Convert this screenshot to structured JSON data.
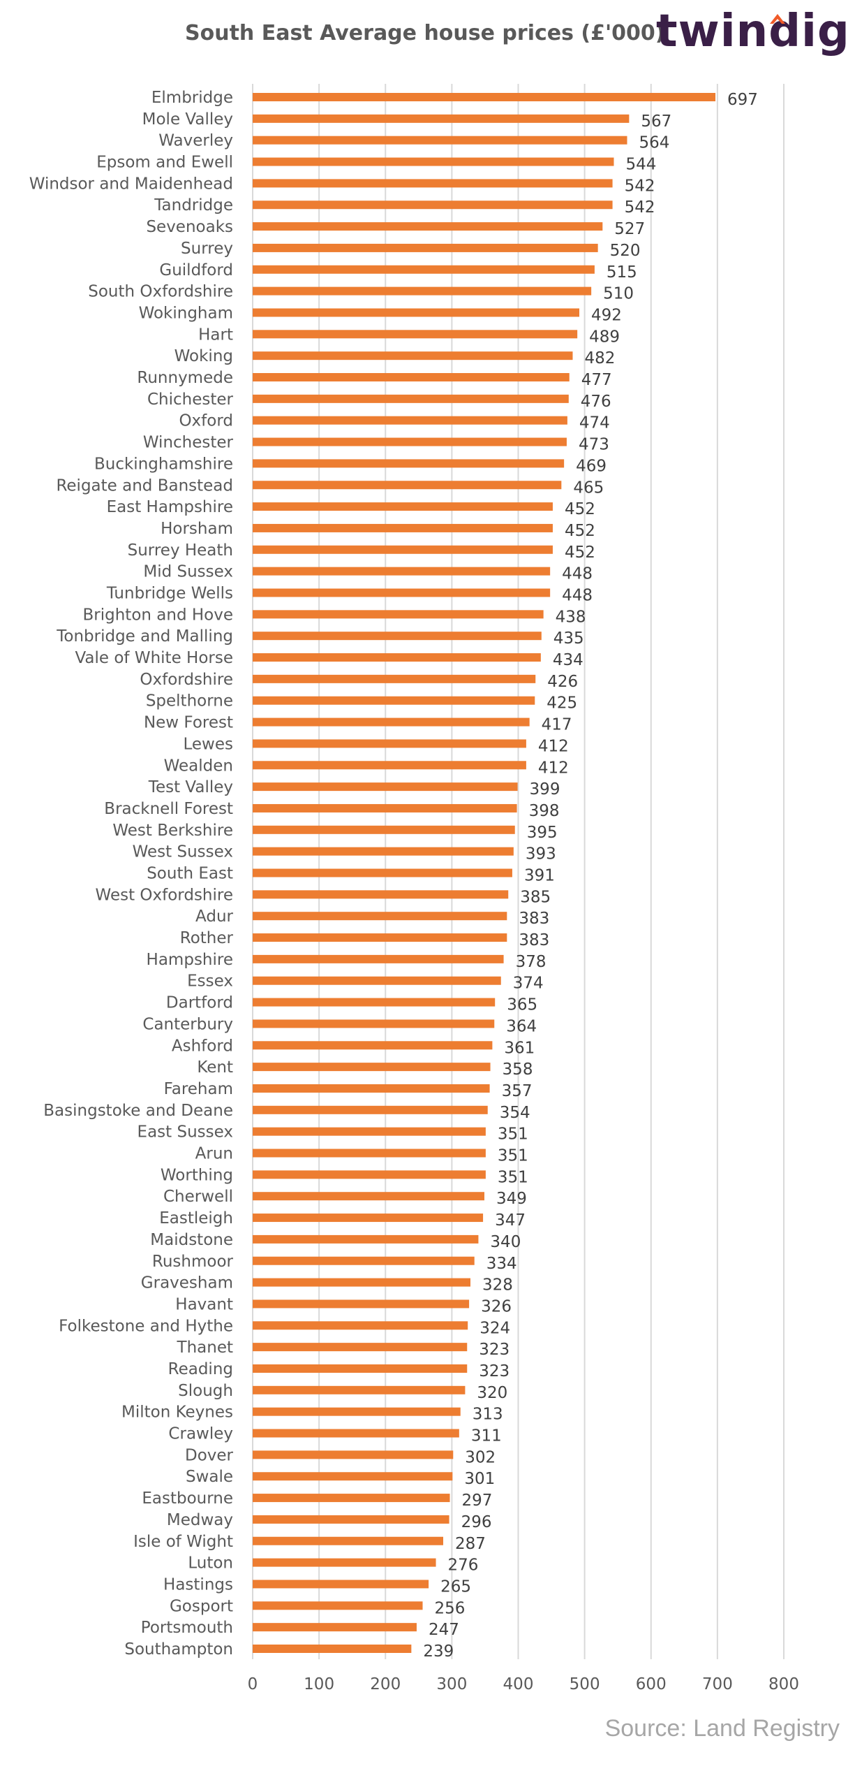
{
  "header": {
    "brand": "twindig"
  },
  "source": "Source: Land Registry",
  "colors": {
    "bar": "#ED7D31",
    "grid": "#D9D9D9",
    "brand": "#3A1F47",
    "brand_accent": "#F05A28"
  },
  "chart_data": {
    "type": "bar",
    "orientation": "horizontal",
    "title": "South East Average house prices (£'000)",
    "xlabel": "",
    "ylabel": "",
    "xlim": [
      0,
      800
    ],
    "xticks": [
      0,
      100,
      200,
      300,
      400,
      500,
      600,
      700,
      800
    ],
    "grid": true,
    "categories": [
      "Elmbridge",
      "Mole Valley",
      "Waverley",
      "Epsom and Ewell",
      "Windsor and Maidenhead",
      "Tandridge",
      "Sevenoaks",
      "Surrey",
      "Guildford",
      "South Oxfordshire",
      "Wokingham",
      "Hart",
      "Woking",
      "Runnymede",
      "Chichester",
      "Oxford",
      "Winchester",
      "Buckinghamshire",
      "Reigate and Banstead",
      "East Hampshire",
      "Horsham",
      "Surrey Heath",
      "Mid Sussex",
      "Tunbridge Wells",
      "Brighton and Hove",
      "Tonbridge and Malling",
      "Vale of White Horse",
      "Oxfordshire",
      "Spelthorne",
      "New Forest",
      "Lewes",
      "Wealden",
      "Test Valley",
      "Bracknell Forest",
      "West Berkshire",
      "West Sussex",
      "South East",
      "West Oxfordshire",
      "Adur",
      "Rother",
      "Hampshire",
      "Essex",
      "Dartford",
      "Canterbury",
      "Ashford",
      "Kent",
      "Fareham",
      "Basingstoke and Deane",
      "East Sussex",
      "Arun",
      "Worthing",
      "Cherwell",
      "Eastleigh",
      "Maidstone",
      "Rushmoor",
      "Gravesham",
      "Havant",
      "Folkestone and Hythe",
      "Thanet",
      "Reading",
      "Slough",
      "Milton Keynes",
      "Crawley",
      "Dover",
      "Swale",
      "Eastbourne",
      "Medway",
      "Isle of Wight",
      "Luton",
      "Hastings",
      "Gosport",
      "Portsmouth",
      "Southampton"
    ],
    "values": [
      697,
      567,
      564,
      544,
      542,
      542,
      527,
      520,
      515,
      510,
      492,
      489,
      482,
      477,
      476,
      474,
      473,
      469,
      465,
      452,
      452,
      452,
      448,
      448,
      438,
      435,
      434,
      426,
      425,
      417,
      412,
      412,
      399,
      398,
      395,
      393,
      391,
      385,
      383,
      383,
      378,
      374,
      365,
      364,
      361,
      358,
      357,
      354,
      351,
      351,
      351,
      349,
      347,
      340,
      334,
      328,
      326,
      324,
      323,
      323,
      320,
      313,
      311,
      302,
      301,
      297,
      296,
      287,
      276,
      265,
      256,
      247,
      239
    ]
  }
}
